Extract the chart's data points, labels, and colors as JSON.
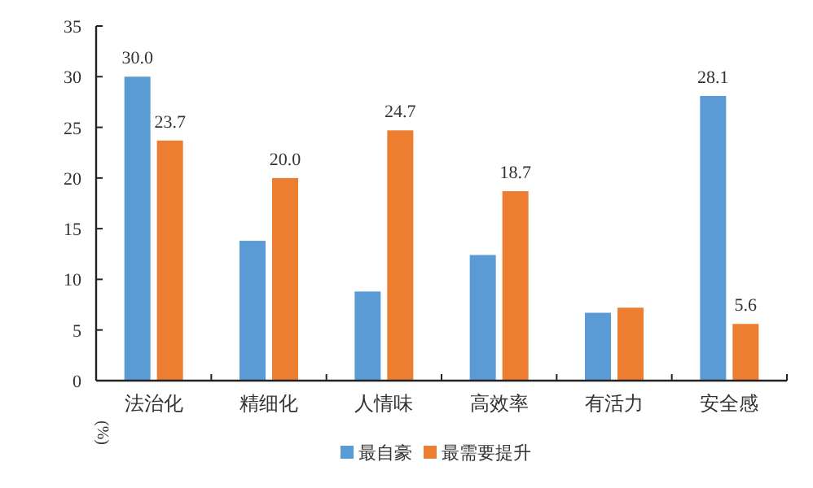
{
  "chart_data": {
    "type": "bar",
    "ylabel": "(%)",
    "categories": [
      "法治化",
      "精细化",
      "人情味",
      "高效率",
      "有活力",
      "安全感"
    ],
    "series": [
      {
        "name": "最自豪",
        "color": "#5b9bd5",
        "values": [
          30.0,
          13.8,
          8.8,
          12.4,
          6.7,
          28.1
        ],
        "value_labels": [
          "30.0",
          null,
          null,
          null,
          null,
          "28.1"
        ]
      },
      {
        "name": "最需要提升",
        "color": "#ed7d31",
        "values": [
          23.7,
          20.0,
          24.7,
          18.7,
          7.2,
          5.6
        ],
        "value_labels": [
          "23.7",
          "20.0",
          "24.7",
          "18.7",
          null,
          "5.6"
        ]
      }
    ],
    "ylim": [
      0,
      35
    ],
    "yticks": [
      0,
      5,
      10,
      15,
      20,
      25,
      30,
      35
    ],
    "grid": false,
    "legend": "bottom"
  }
}
